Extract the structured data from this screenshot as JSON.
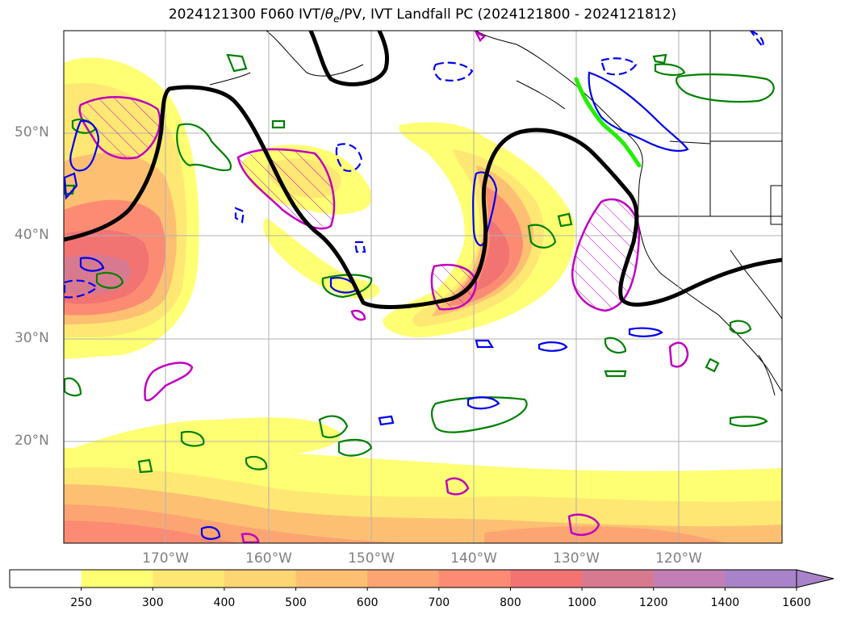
{
  "title": {
    "prefix": "2024121300 F060 IVT/",
    "theta": "θ",
    "theta_sub": "e",
    "suffix": "/PV, IVT Landfall PC (2024121800 - 2024121812)"
  },
  "map": {
    "lat_labels": [
      "50°N",
      "40°N",
      "30°N",
      "20°N"
    ],
    "lon_labels": [
      "170°W",
      "160°W",
      "150°W",
      "140°W",
      "130°W",
      "120°W"
    ],
    "colors": {
      "pv_contour": "#000000",
      "theta_e_contour": "#0000ff",
      "green_contour": "#008000",
      "magenta_hatch": "#c000c0",
      "landfall": "#22ee00"
    }
  },
  "colorbar": {
    "labels": [
      "250",
      "300",
      "400",
      "500",
      "600",
      "700",
      "800",
      "1000",
      "1200",
      "1400",
      "1600"
    ],
    "colors": [
      "#ffffff",
      "#ffff73",
      "#fee873",
      "#fed573",
      "#fdc073",
      "#fca573",
      "#fb8c73",
      "#f17473",
      "#d87a8f",
      "#c37fb5",
      "#a983c9"
    ],
    "extend": "max"
  }
}
